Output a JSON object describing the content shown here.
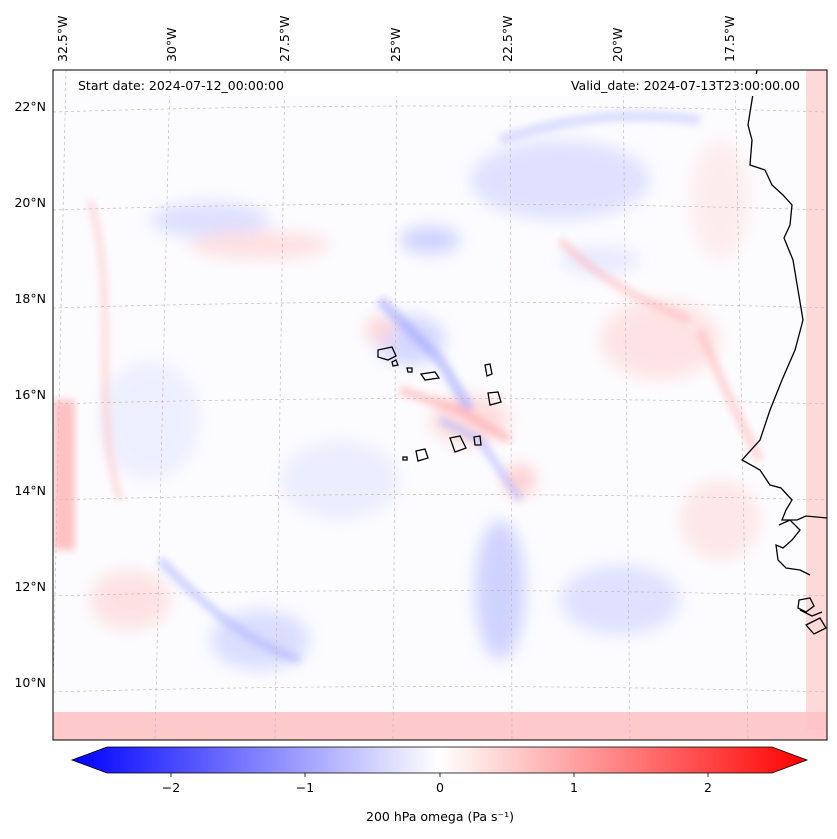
{
  "header": {
    "start_date": "Start date: 2024-07-12_00:00:00",
    "valid_date": "Valid_date: 2024-07-13T23:00:00.00"
  },
  "map": {
    "projection": "lambert-conformal",
    "top_lon_labels": [
      "32.5°W",
      "30°W",
      "27.5°W",
      "25°W",
      "22.5°W",
      "20°W",
      "17.5°W"
    ],
    "left_lat_labels": [
      "22°N",
      "20°N",
      "18°N",
      "16°N",
      "14°N",
      "12°N",
      "10°N"
    ],
    "gridlines": true,
    "coastlines": true,
    "features": [
      "Cape Verde islands",
      "West African coast"
    ]
  },
  "colorbar": {
    "label": "200 hPa omega (Pa s⁻¹)",
    "ticks": [
      "−2",
      "−1",
      "0",
      "1",
      "2"
    ],
    "range": [
      -2.75,
      2.75
    ],
    "extend": "both",
    "colormap": "bwr",
    "colors": {
      "neg": "#0000ff",
      "mid": "#ffffff",
      "pos": "#ff0000"
    }
  },
  "chart_data": {
    "type": "heatmap",
    "variable": "200 hPa omega",
    "units": "Pa s⁻¹",
    "value_range": [
      -2.75,
      2.75
    ]
  }
}
